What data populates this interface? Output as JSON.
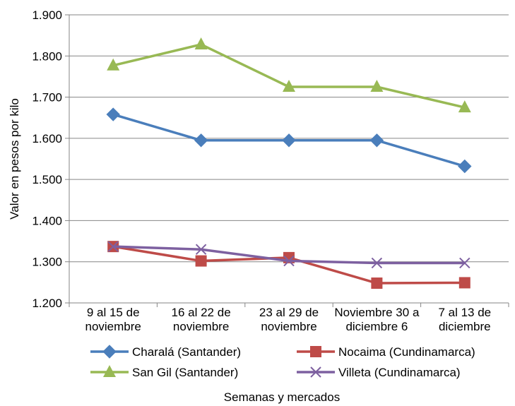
{
  "chart_data": {
    "type": "line",
    "title": "",
    "xlabel": "Semanas y mercados",
    "ylabel": "Valor en pesos por kilo",
    "ylim": [
      1200,
      1900
    ],
    "yticks": [
      1200,
      1300,
      1400,
      1500,
      1600,
      1700,
      1800,
      1900
    ],
    "ytick_labels": [
      "1.200",
      "1.300",
      "1.400",
      "1.500",
      "1.600",
      "1.700",
      "1.800",
      "1.900"
    ],
    "categories": [
      [
        "9 al 15 de",
        "noviembre"
      ],
      [
        "16 al 22 de",
        "noviembre"
      ],
      [
        "23 al 29 de",
        "noviembre"
      ],
      [
        "Noviembre 30 a",
        "diciembre 6"
      ],
      [
        "7 al 13 de",
        "diciembre"
      ]
    ],
    "grid": "horizontal",
    "legend_position": "bottom",
    "series": [
      {
        "name": "Charalá (Santander)",
        "color": "#4a7ebb",
        "marker": "diamond",
        "values": [
          1658,
          1595,
          1595,
          1595,
          1532
        ]
      },
      {
        "name": "Nocaima (Cundinamarca)",
        "color": "#be4b48",
        "marker": "square",
        "values": [
          1337,
          1302,
          1310,
          1248,
          1249
        ]
      },
      {
        "name": "San Gil (Santander)",
        "color": "#98b954",
        "marker": "triangle",
        "values": [
          1777,
          1828,
          1725,
          1725,
          1675
        ]
      },
      {
        "name": "Villeta (Cundinamarca)",
        "color": "#7d60a0",
        "marker": "x",
        "values": [
          1337,
          1330,
          1302,
          1297,
          1297
        ]
      }
    ]
  }
}
